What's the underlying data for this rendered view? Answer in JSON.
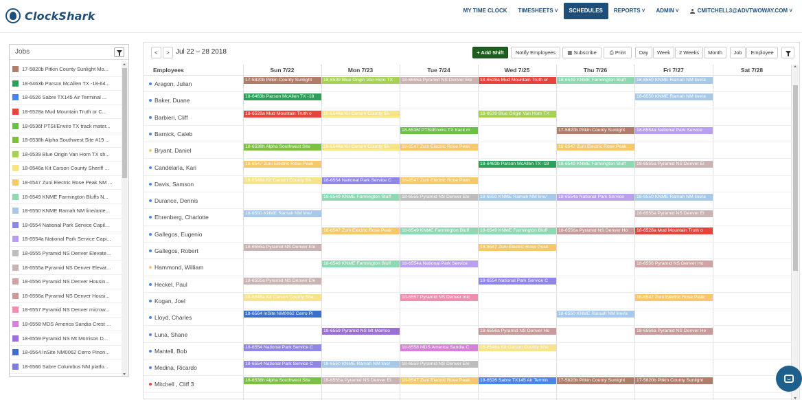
{
  "app": {
    "name": "ClockShark"
  },
  "nav": {
    "items": [
      {
        "label": "MY TIME CLOCK",
        "active": false
      },
      {
        "label": "TIMESHEETS ˅",
        "active": false
      },
      {
        "label": "SCHEDULES",
        "active": true
      },
      {
        "label": "REPORTS ˅",
        "active": false
      },
      {
        "label": "ADMIN ˅",
        "active": false
      }
    ],
    "user": "CMITCHELL3@ADVTWOWAY.COM ˅"
  },
  "jobs": {
    "title": "Jobs",
    "items": [
      {
        "label": "17-5820b Pitkin County Sunlight Mo...",
        "color": "#b07d6b"
      },
      {
        "label": "18-6463b Parson McAllen TX -18-64...",
        "color": "#2e9e5b"
      },
      {
        "label": "18-6526 Sabre TX145 Air Terminal ...",
        "color": "#4a86e8"
      },
      {
        "label": "18-6528a Mud Mountain Truth or C...",
        "color": "#e8433a"
      },
      {
        "label": "18-6536f PTSI/Enviro TX track mater...",
        "color": "#6bc048"
      },
      {
        "label": "18-6538h Alpha Southwest Site #19 ...",
        "color": "#7bc043"
      },
      {
        "label": "18-6539 Blue Origin Van Horn TX sh...",
        "color": "#a6d155"
      },
      {
        "label": "18-6546a Kit Carson County Sheriff ...",
        "color": "#f7e38a"
      },
      {
        "label": "18-6547 Zuni Electric Rose Peak NM ...",
        "color": "#f7c86b"
      },
      {
        "label": "18-6549 KNME Farmington Bluffs N...",
        "color": "#8ed8b4"
      },
      {
        "label": "18-6550 KNME Ramah NM line/ante...",
        "color": "#a8c8e8"
      },
      {
        "label": "18-6554 National Park Service Capil...",
        "color": "#8f86e8"
      },
      {
        "label": "18-6554a National Park Service Capi...",
        "color": "#b9a0ef"
      },
      {
        "label": "18-6555 Pyramid NS Denver Elevate...",
        "color": "#bdbdbd"
      },
      {
        "label": "18-6555a Pyramid NS Denver Elevat...",
        "color": "#c9b3b3"
      },
      {
        "label": "18-6556 Pyramid NS Denver Housin...",
        "color": "#d0a4a4"
      },
      {
        "label": "18-6556a Pyramid NS Denver Housi...",
        "color": "#c99a9a"
      },
      {
        "label": "18-6557 Pyramid NS Denver microw...",
        "color": "#ef8fb0"
      },
      {
        "label": "18-6558 MDS America Sandia Crest ...",
        "color": "#d77fd9"
      },
      {
        "label": "18-6559 Pyramid NS Mt Morrison D...",
        "color": "#9c6fd6"
      },
      {
        "label": "18-6564 InSite NM0062 Cerro Pinon...",
        "color": "#3f6fc9"
      },
      {
        "label": "18-6566 Sabre Columbus NM platfo...",
        "color": "#7d7dd6"
      }
    ]
  },
  "toolbar": {
    "prev": "<",
    "next": ">",
    "date_range": "Jul 22 – 28 2018",
    "add_shift": "+ Add Shift",
    "notify": "Notify Employees",
    "subscribe": "▦ Subscribe",
    "print": "⎙ Print",
    "day": "Day",
    "week": "Week",
    "two_weeks": "2 Weeks",
    "month": "Month",
    "job": "Job",
    "employee": "Employee"
  },
  "calendar": {
    "employees_header": "Employees",
    "days": [
      "Sun 7/22",
      "Mon 7/23",
      "Tue 7/24",
      "Wed 7/25",
      "Thu 7/26",
      "Fri 7/27",
      "Sat 7/28"
    ],
    "rows": [
      {
        "name": "Aragon, Julian",
        "dot": "#4a86e8",
        "shifts": [
          [
            0,
            "17-5820b Pitkin County Sunlight",
            "#b07d6b"
          ],
          [
            1,
            "18-6539 Blue Origin Van Horn TX",
            "#a6d155"
          ],
          [
            2,
            "18-6555a Pyramid NS Denver Ele",
            "#c9b3b3"
          ],
          [
            3,
            "18-6528a Mud Mountain Truth or",
            "#e8433a"
          ],
          [
            4,
            "18-6549 KNME Farmington Bluff",
            "#8ed8b4"
          ],
          [
            5,
            "18-6550 KNME Ramah NM line/a",
            "#a8c8e8"
          ]
        ]
      },
      {
        "name": "Baker, Duane",
        "dot": "#4a86e8",
        "shifts": [
          [
            0,
            "18-6463b Parson McAllen TX -18",
            "#2e9e5b"
          ],
          [
            5,
            "18-6550 KNME Ramah NM line/a",
            "#a8c8e8"
          ]
        ]
      },
      {
        "name": "Barbieri, Cliff",
        "dot": "#4a86e8",
        "shifts": [
          [
            0,
            "18-6528a Mud Mountain Truth o",
            "#e8433a"
          ],
          [
            1,
            "18-6546a Kit Carson County Sh",
            "#f7e38a"
          ],
          [
            3,
            "18-6539 Blue Origin Van Horn TX",
            "#a6d155"
          ]
        ]
      },
      {
        "name": "Barnick, Caleb",
        "dot": "#4a86e8",
        "shifts": [
          [
            2,
            "18-6536f PTSI/Enviro TX track m",
            "#6bc048"
          ],
          [
            4,
            "17-5820b Pitkin County Sunlight",
            "#b07d6b"
          ],
          [
            5,
            "18-6554a National Park Service",
            "#b9a0ef"
          ]
        ]
      },
      {
        "name": "Bryant, Daniel",
        "dot": "#f7c86b",
        "shifts": [
          [
            0,
            "18-6538h Alpha Southwest Site",
            "#7bc043"
          ],
          [
            1,
            "18-6546a Kit Carson County Sh",
            "#f7e38a"
          ],
          [
            2,
            "18-6547 Zuni Electric Rose Peak",
            "#f7c86b"
          ],
          [
            4,
            "18-6547 Zuni Electric Rose Peak",
            "#f7c86b"
          ]
        ]
      },
      {
        "name": "Candelaria, Kari",
        "dot": "#4a86e8",
        "shifts": [
          [
            0,
            "18-6547 Zuni Electric Rose Peak",
            "#f7c86b"
          ],
          [
            3,
            "18-6463b Parson McAllen TX -18",
            "#2e9e5b"
          ],
          [
            4,
            "18-6549 KNME Farmington Bluff",
            "#8ed8b4"
          ],
          [
            5,
            "18-6555a Pyramid NS Denver El",
            "#c9b3b3"
          ]
        ]
      },
      {
        "name": "Davis, Samson",
        "dot": "#4a86e8",
        "shifts": [
          [
            0,
            "18-6546a Kit Carson County Sh",
            "#f7e38a"
          ],
          [
            1,
            "18-6554 National Park Service C",
            "#8f86e8"
          ],
          [
            2,
            "18-6547 Zuni Electric Rose Peak",
            "#f7c86b"
          ]
        ]
      },
      {
        "name": "Durance, Dennis",
        "dot": "#4a86e8",
        "shifts": [
          [
            1,
            "18-6549 KNME Farmington Bluff",
            "#8ed8b4"
          ],
          [
            2,
            "18-6555 Pyramid NS Denver Ele",
            "#bdbdbd"
          ],
          [
            3,
            "18-6550 KNME Ramah NM line/",
            "#a8c8e8"
          ],
          [
            4,
            "18-6554a National Park Service",
            "#b9a0ef"
          ],
          [
            5,
            "18-6550 KNME Ramah NM line/a",
            "#a8c8e8"
          ]
        ]
      },
      {
        "name": "Ehrenberg, Charlotte",
        "dot": "#4a86e8",
        "shifts": [
          [
            0,
            "18-6550 KNME Ramah NM line/",
            "#a8c8e8"
          ],
          [
            5,
            "18-6555a Pyramid NS Denver El",
            "#c9b3b3"
          ]
        ]
      },
      {
        "name": "Gallegos, Eugenio",
        "dot": "#4a86e8",
        "shifts": [
          [
            1,
            "18-6547 Zuni Electric Rose Peak",
            "#f7c86b"
          ],
          [
            2,
            "18-6549 KNME Farmington Bluff",
            "#8ed8b4"
          ],
          [
            3,
            "18-6549 KNME Farmington Bluff",
            "#8ed8b4"
          ],
          [
            4,
            "18-6556a Pyramid NS Denver Ho",
            "#c99a9a"
          ],
          [
            5,
            "18-6528a Mud Mountain Truth o",
            "#e8433a"
          ]
        ]
      },
      {
        "name": "Gallegos, Robert",
        "dot": "#4a86e8",
        "shifts": [
          [
            0,
            "18-6555a Pyramid NS Denver Ele",
            "#c9b3b3"
          ],
          [
            3,
            "18-6547 Zuni Electric Rose Peak",
            "#f7c86b"
          ]
        ]
      },
      {
        "name": "Hammond, William",
        "dot": "#f7c86b",
        "shifts": [
          [
            1,
            "18-6549 KNME Farmington Bluff",
            "#8ed8b4"
          ],
          [
            2,
            "18-6554a National Park Service",
            "#b9a0ef"
          ],
          [
            5,
            "18-6556 Pyramid NS Denver Ho",
            "#d0a4a4"
          ]
        ]
      },
      {
        "name": "Heckel, Paul",
        "dot": "#4a86e8",
        "shifts": [
          [
            0,
            "18-6555a Pyramid NS Denver Ele",
            "#c9b3b3"
          ],
          [
            3,
            "18-6554 National Park Service C",
            "#8f86e8"
          ]
        ]
      },
      {
        "name": "Kogan, Joel",
        "dot": "#4a86e8",
        "shifts": [
          [
            0,
            "18-6546a Kit Carson County She",
            "#f7e38a"
          ],
          [
            2,
            "18-6557 Pyramid NS Denver mic",
            "#ef8fb0"
          ],
          [
            5,
            "18-6547 Zuni Electric Rose Peak",
            "#f7c86b"
          ]
        ]
      },
      {
        "name": "Lloyd, Charles",
        "dot": "#4a86e8",
        "shifts": [
          [
            0,
            "18-6564 InSite NM0062 Cerro Pi",
            "#3f6fc9"
          ],
          [
            4,
            "18-6550 KNME Ramah NM line/a",
            "#a8c8e8"
          ]
        ]
      },
      {
        "name": "Luna, Shane",
        "dot": "#4a86e8",
        "shifts": [
          [
            1,
            "18-6559 Pyramid NS Mt Morriso",
            "#9c6fd6"
          ],
          [
            3,
            "18-6556a Pyramid NS Denver He",
            "#c99a9a"
          ],
          [
            5,
            "18-6556a Pyramid NS Denver He",
            "#c99a9a"
          ]
        ]
      },
      {
        "name": "Mantell, Bob",
        "dot": "#4a86e8",
        "shifts": [
          [
            0,
            "18-6554 National Park Service C",
            "#8f86e8"
          ],
          [
            2,
            "18-6558 MDS America Sandia C",
            "#d77fd9"
          ],
          [
            3,
            "18-6546a Kit Carson County She",
            "#f7e38a"
          ]
        ]
      },
      {
        "name": "Medina, Ricardo",
        "dot": "#4a86e8",
        "shifts": [
          [
            0,
            "18-6554 National Park Service C",
            "#8f86e8"
          ],
          [
            1,
            "18-6550 KNME Ramah NM line/",
            "#a8c8e8"
          ],
          [
            2,
            "18-6555 Pyramid NS Denver Ele",
            "#bdbdbd"
          ]
        ]
      },
      {
        "name": "Mitchell , Cliff 3",
        "dot": "#e8433a",
        "shifts": [
          [
            0,
            "18-6538h Alpha Southwest Site",
            "#7bc043"
          ],
          [
            1,
            "18-6555a Pyramid NS Denver El",
            "#c9b3b3"
          ],
          [
            2,
            "18-6547 Zuni Electric Rose Peak",
            "#f7c86b"
          ],
          [
            3,
            "18-6526 Sabre TX145 Air Termin",
            "#4a86e8"
          ],
          [
            4,
            "17-5820b Pitkin County Sunlight",
            "#b07d6b"
          ],
          [
            5,
            "17-5820b Pitkin County Sunlight",
            "#b07d6b"
          ]
        ]
      }
    ]
  }
}
